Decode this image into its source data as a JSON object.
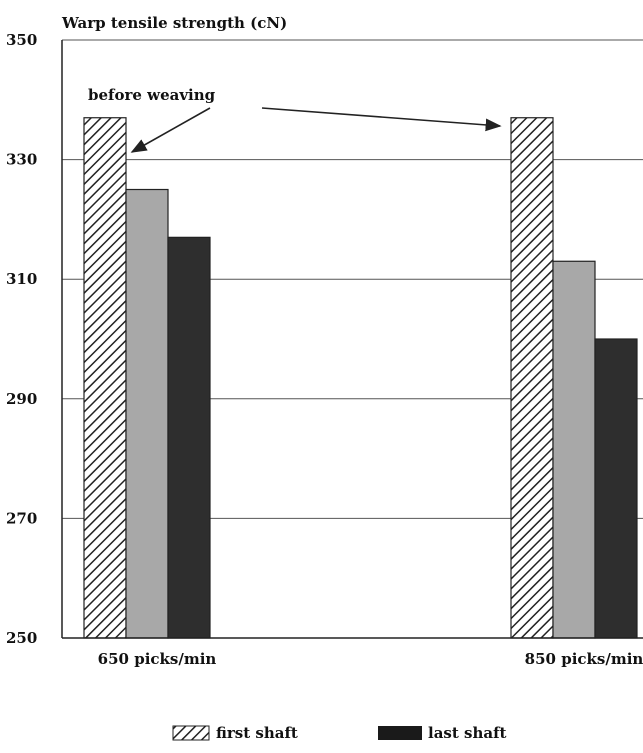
{
  "chart_data": {
    "type": "bar",
    "ylabel": "Warp tensile strength (cN)",
    "ylim": [
      250,
      350
    ],
    "yticks": [
      250,
      270,
      290,
      310,
      330,
      350
    ],
    "grid": true,
    "categories": [
      "650 picks/min",
      "850 picks/min"
    ],
    "series": [
      {
        "name": "",
        "values": [
          337,
          337
        ],
        "color": "#ffffff",
        "pattern": "hatch"
      },
      {
        "name": "",
        "values": [
          325,
          313
        ],
        "color": "#a8a8a8"
      },
      {
        "name": "",
        "values": [
          317,
          300
        ],
        "color": "#2e2e2e"
      }
    ],
    "annotation": {
      "text": "before weaving",
      "targets": "first series"
    },
    "legend": {
      "position": "bottom",
      "items": [
        {
          "label": "first shaft",
          "pattern": "hatch"
        },
        {
          "label": "last shaft",
          "color": "#1a1a1a"
        }
      ]
    }
  }
}
